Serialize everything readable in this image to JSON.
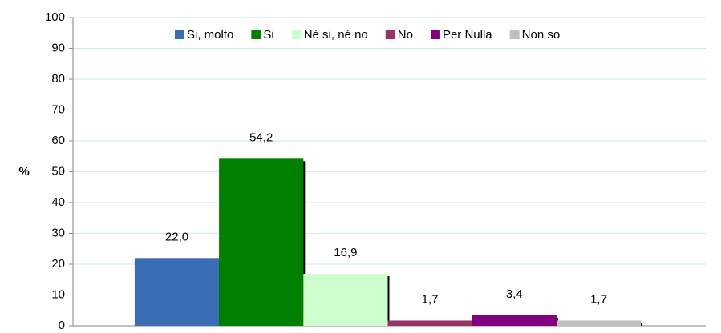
{
  "chart_data": {
    "type": "bar",
    "ylabel": "%",
    "series": [
      {
        "name": "Si, molto",
        "color": "#3a6db3",
        "values": [
          22.0
        ],
        "value_labels": [
          "22,0"
        ]
      },
      {
        "name": "Si",
        "color": "#008000",
        "values": [
          54.2
        ],
        "value_labels": [
          "54,2"
        ]
      },
      {
        "name": "Nè si, né no",
        "color": "#ccffcc",
        "values": [
          16.9
        ],
        "value_labels": [
          "16,9"
        ]
      },
      {
        "name": "No",
        "color": "#993366",
        "values": [
          1.7
        ],
        "value_labels": [
          "1,7"
        ]
      },
      {
        "name": "Per Nulla",
        "color": "#800080",
        "values": [
          3.4
        ],
        "value_labels": [
          "3,4"
        ]
      },
      {
        "name": "Non so",
        "color": "#c0c0c0",
        "values": [
          1.7
        ],
        "value_labels": [
          "1,7"
        ]
      }
    ],
    "ylim": [
      0,
      100
    ],
    "yticks": [
      0,
      10,
      20,
      30,
      40,
      50,
      60,
      70,
      80,
      90,
      100
    ],
    "grid": true,
    "legend": "top"
  }
}
